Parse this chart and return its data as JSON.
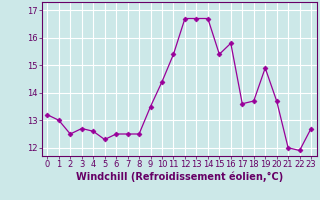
{
  "x": [
    0,
    1,
    2,
    3,
    4,
    5,
    6,
    7,
    8,
    9,
    10,
    11,
    12,
    13,
    14,
    15,
    16,
    17,
    18,
    19,
    20,
    21,
    22,
    23
  ],
  "y": [
    13.2,
    13.0,
    12.5,
    12.7,
    12.6,
    12.3,
    12.5,
    12.5,
    12.5,
    13.5,
    14.4,
    15.4,
    16.7,
    16.7,
    16.7,
    15.4,
    15.8,
    13.6,
    13.7,
    14.9,
    13.7,
    12.0,
    11.9,
    12.7
  ],
  "line_color": "#990099",
  "marker": "D",
  "marker_size": 2.5,
  "bg_color": "#cce8e8",
  "grid_color": "#ffffff",
  "xlabel": "Windchill (Refroidissement éolien,°C)",
  "xlim": [
    -0.5,
    23.5
  ],
  "ylim": [
    11.7,
    17.3
  ],
  "yticks": [
    12,
    13,
    14,
    15,
    16,
    17
  ],
  "xticks": [
    0,
    1,
    2,
    3,
    4,
    5,
    6,
    7,
    8,
    9,
    10,
    11,
    12,
    13,
    14,
    15,
    16,
    17,
    18,
    19,
    20,
    21,
    22,
    23
  ],
  "tick_label_fontsize": 6.0,
  "xlabel_fontsize": 7.0,
  "line_color_spine": "#660066",
  "tick_color": "#660066"
}
